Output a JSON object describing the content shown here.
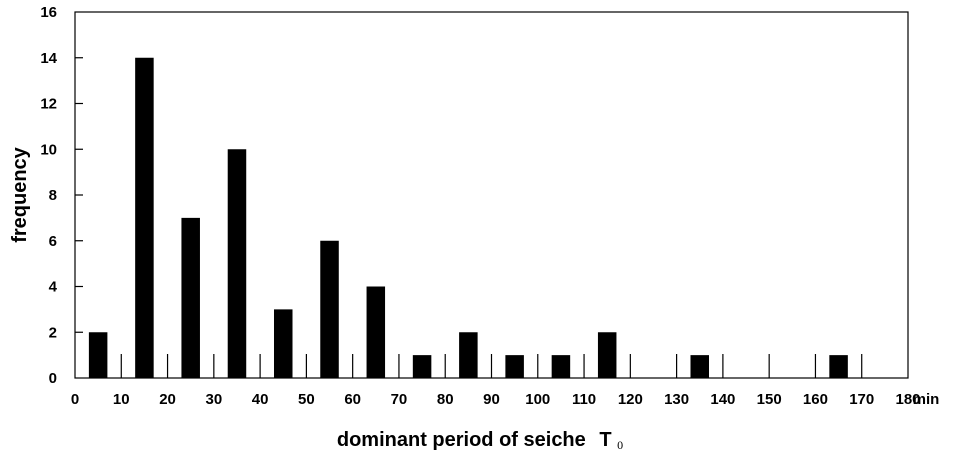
{
  "chart_data": {
    "type": "bar",
    "xlabel": "dominant period of seiche",
    "xlabel_symbol": "T",
    "xlabel_subscript": "0",
    "x_unit": "min",
    "ylabel": "frequency",
    "xlim": [
      0,
      180
    ],
    "ylim": [
      0,
      16
    ],
    "x_ticks": [
      0,
      10,
      20,
      30,
      40,
      50,
      60,
      70,
      80,
      90,
      100,
      110,
      120,
      130,
      140,
      150,
      160,
      170,
      180
    ],
    "y_ticks": [
      0,
      2,
      4,
      6,
      8,
      10,
      12,
      14,
      16
    ],
    "grid": false,
    "bin_width": 10,
    "bin_centers": [
      5,
      15,
      25,
      35,
      45,
      55,
      65,
      75,
      85,
      95,
      105,
      115,
      125,
      135,
      145,
      155,
      165,
      175
    ],
    "values": [
      2,
      14,
      7,
      10,
      3,
      6,
      4,
      1,
      2,
      1,
      1,
      2,
      0,
      1,
      0,
      0,
      1,
      0
    ],
    "bar_color": "#000000"
  }
}
